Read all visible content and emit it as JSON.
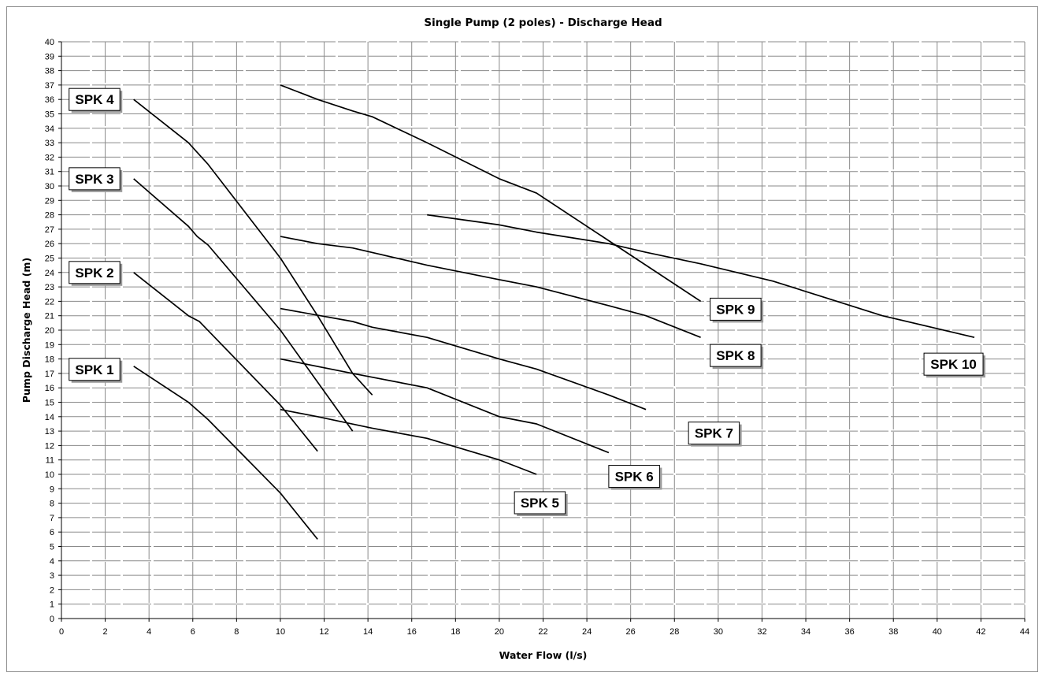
{
  "chart_data": {
    "type": "line",
    "title": "Single Pump (2 poles) - Discharge Head",
    "xlabel": "Water Flow (l/s)",
    "ylabel": "Pump Discharge Head (m)",
    "xlim": [
      0,
      44
    ],
    "ylim": [
      0,
      40
    ],
    "x_ticks": [
      0,
      2,
      4,
      6,
      8,
      10,
      12,
      14,
      16,
      18,
      20,
      22,
      24,
      26,
      28,
      30,
      32,
      34,
      36,
      38,
      40,
      42,
      44
    ],
    "y_ticks": [
      0,
      1,
      2,
      3,
      4,
      5,
      6,
      7,
      8,
      9,
      10,
      11,
      12,
      13,
      14,
      15,
      16,
      17,
      18,
      19,
      20,
      21,
      22,
      23,
      24,
      25,
      26,
      27,
      28,
      29,
      30,
      31,
      32,
      33,
      34,
      35,
      36,
      37,
      38,
      39,
      40
    ],
    "grid": true,
    "line_color": "#000000",
    "series": [
      {
        "name": "SPK 1",
        "x": [
          3.3,
          5.8,
          6.7,
          10.0,
          11.7
        ],
        "y": [
          17.5,
          15.0,
          13.8,
          8.7,
          5.5
        ]
      },
      {
        "name": "SPK 2",
        "x": [
          3.3,
          5.8,
          6.3,
          10.0,
          11.7
        ],
        "y": [
          24.0,
          21.0,
          20.6,
          14.8,
          11.6
        ]
      },
      {
        "name": "SPK 3",
        "x": [
          3.3,
          5.8,
          6.2,
          6.7,
          10.0,
          13.3
        ],
        "y": [
          30.5,
          27.2,
          26.5,
          25.9,
          20.0,
          13.0
        ]
      },
      {
        "name": "SPK 4",
        "x": [
          3.3,
          5.8,
          6.7,
          10.0,
          11.7,
          13.3,
          14.2
        ],
        "y": [
          36.0,
          33.0,
          31.5,
          25.0,
          21.0,
          17.0,
          15.5
        ]
      },
      {
        "name": "SPK 5",
        "x": [
          10.0,
          11.7,
          14.2,
          16.7,
          20.0,
          21.7
        ],
        "y": [
          14.5,
          14.0,
          13.2,
          12.5,
          11.0,
          10.0
        ]
      },
      {
        "name": "SPK 6",
        "x": [
          10.0,
          13.3,
          16.7,
          20.0,
          21.7,
          25.0
        ],
        "y": [
          18.0,
          17.0,
          16.0,
          14.0,
          13.5,
          11.5
        ]
      },
      {
        "name": "SPK 7",
        "x": [
          10.0,
          13.3,
          14.2,
          16.7,
          20.0,
          21.7,
          25.0,
          26.7
        ],
        "y": [
          21.5,
          20.6,
          20.2,
          19.5,
          18.0,
          17.3,
          15.5,
          14.5
        ]
      },
      {
        "name": "SPK 8",
        "x": [
          10.0,
          11.7,
          13.3,
          16.7,
          20.0,
          21.7,
          25.0,
          26.7,
          29.2
        ],
        "y": [
          26.5,
          26.0,
          25.7,
          24.5,
          23.5,
          23.0,
          21.7,
          21.0,
          19.5
        ]
      },
      {
        "name": "SPK 9",
        "x": [
          10.0,
          11.7,
          13.3,
          14.2,
          16.7,
          20.0,
          21.7,
          25.0,
          29.2
        ],
        "y": [
          37.0,
          36.0,
          35.2,
          34.8,
          33.0,
          30.5,
          29.5,
          26.2,
          22.0
        ]
      },
      {
        "name": "SPK 10",
        "x": [
          16.7,
          20.0,
          21.7,
          25.0,
          26.7,
          29.2,
          32.5,
          35.0,
          37.5,
          41.7
        ],
        "y": [
          28.0,
          27.3,
          26.8,
          26.0,
          25.4,
          24.6,
          23.4,
          22.2,
          21.0,
          19.5
        ]
      }
    ]
  }
}
